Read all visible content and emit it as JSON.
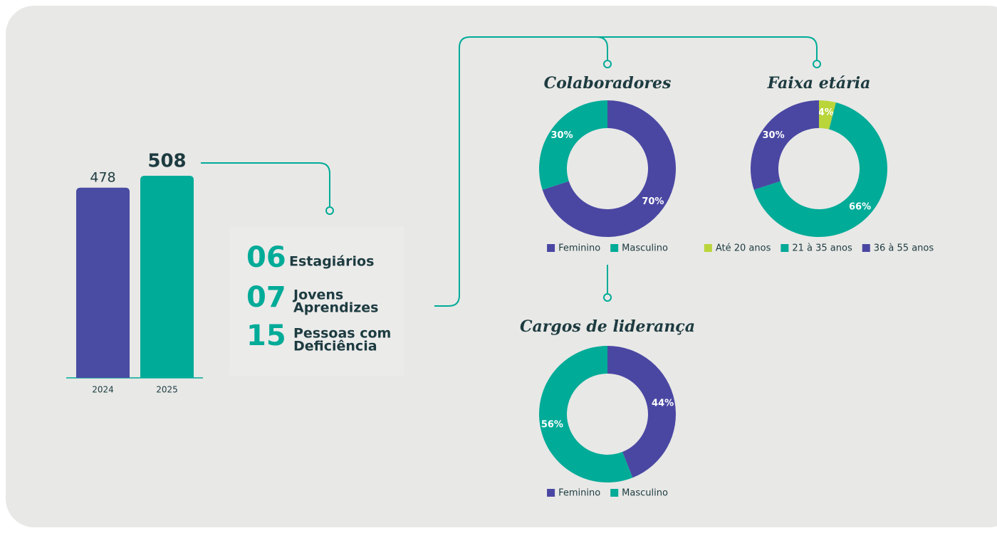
{
  "chart_data": [
    {
      "type": "bar",
      "categories": [
        "2024",
        "2025"
      ],
      "values": [
        478,
        508
      ],
      "colors": [
        "#4a4ba3",
        "#00ab98"
      ]
    },
    {
      "type": "pie",
      "title": "Colaboradores",
      "categories": [
        "Feminino",
        "Masculino"
      ],
      "values": [
        70,
        30
      ],
      "value_labels": [
        "70%",
        "30%"
      ],
      "colors": [
        "#4a47a3",
        "#00ab98"
      ]
    },
    {
      "type": "pie",
      "title": "Faixa etária",
      "categories": [
        "Até 20 anos",
        "21 à 35 anos",
        "36 à 55 anos"
      ],
      "values": [
        4,
        66,
        30
      ],
      "value_labels": [
        "4%",
        "66%",
        "30%"
      ],
      "colors": [
        "#b9d53a",
        "#00ab98",
        "#4a47a3"
      ]
    },
    {
      "type": "pie",
      "title": "Cargos de liderança",
      "categories": [
        "Feminino",
        "Masculino"
      ],
      "values": [
        44,
        56
      ],
      "value_labels": [
        "44%",
        "56%"
      ],
      "colors": [
        "#4a47a3",
        "#00ab98"
      ]
    }
  ],
  "stats": {
    "items": [
      {
        "number": "06",
        "lines": [
          "Estagiários"
        ]
      },
      {
        "number": "07",
        "lines": [
          "Jovens",
          "Aprendizes"
        ]
      },
      {
        "number": "15",
        "lines": [
          "Pessoas com",
          "Deficiência"
        ]
      }
    ]
  }
}
